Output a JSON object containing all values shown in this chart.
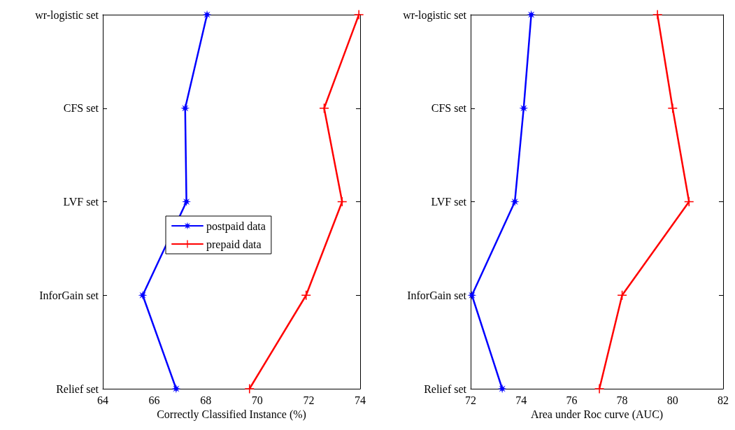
{
  "chart_data": [
    {
      "type": "line",
      "orientation": "horizontal",
      "xlabel": "Correctly Classified Instance (%)",
      "categories": [
        "wr-logistic set",
        "CFS set",
        "LVF set",
        "InforGain set",
        "Relief set"
      ],
      "xlim": [
        64,
        74
      ],
      "xticks": [
        64,
        66,
        68,
        70,
        72,
        74
      ],
      "grid": false,
      "legend": "center",
      "series": [
        {
          "name": "postpaid data",
          "color": "#0000ff",
          "marker": "star",
          "values": [
            68.05,
            67.2,
            67.25,
            65.55,
            66.85
          ]
        },
        {
          "name": "prepaid data",
          "color": "#ff0000",
          "marker": "cross",
          "values": [
            73.95,
            72.6,
            73.3,
            71.9,
            69.7
          ]
        }
      ]
    },
    {
      "type": "line",
      "orientation": "horizontal",
      "xlabel": "Area under Roc curve (AUC)",
      "categories": [
        "wr-logistic set",
        "CFS set",
        "LVF set",
        "InforGain set",
        "Relief set"
      ],
      "xlim": [
        72,
        82
      ],
      "xticks": [
        72,
        74,
        76,
        78,
        80,
        82
      ],
      "grid": false,
      "legend": false,
      "series": [
        {
          "color": "#0000ff",
          "marker": "star",
          "values": [
            74.4,
            74.1,
            73.75,
            72.05,
            73.25
          ]
        },
        {
          "color": "#ff0000",
          "marker": "cross",
          "values": [
            79.4,
            80.0,
            80.65,
            78.0,
            77.1
          ]
        }
      ]
    }
  ]
}
